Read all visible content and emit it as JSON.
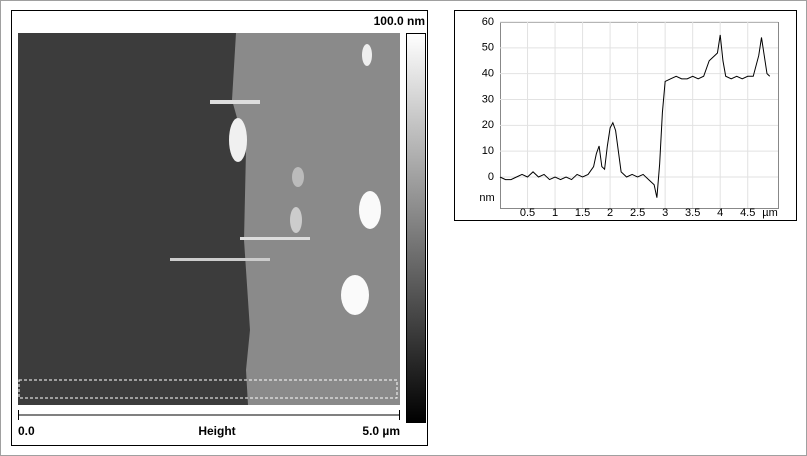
{
  "afm_image": {
    "scale_max": "100.0 nm",
    "x_min": "0.0",
    "channel": "Height",
    "x_max": "5.0 µm"
  },
  "chart_data": {
    "type": "line",
    "y_label": "nm",
    "x_label": "µm",
    "color": "#000000",
    "grid": true,
    "x": [
      0,
      0.1,
      0.2,
      0.3,
      0.4,
      0.5,
      0.6,
      0.7,
      0.8,
      0.9,
      1.0,
      1.1,
      1.2,
      1.3,
      1.4,
      1.5,
      1.6,
      1.7,
      1.75,
      1.8,
      1.85,
      1.9,
      1.95,
      2.0,
      2.05,
      2.1,
      2.15,
      2.2,
      2.3,
      2.4,
      2.5,
      2.6,
      2.7,
      2.8,
      2.85,
      2.9,
      2.95,
      3.0,
      3.1,
      3.2,
      3.3,
      3.4,
      3.5,
      3.6,
      3.7,
      3.8,
      3.9,
      3.95,
      4.0,
      4.05,
      4.1,
      4.2,
      4.3,
      4.4,
      4.5,
      4.6,
      4.7,
      4.75,
      4.8,
      4.85,
      4.9
    ],
    "values": [
      0,
      -1,
      -1,
      0,
      1,
      0,
      2,
      0,
      1,
      -1,
      0,
      -1,
      0,
      -1,
      1,
      0,
      1,
      4,
      9,
      12,
      4,
      3,
      12,
      19,
      21,
      18,
      10,
      2,
      0,
      1,
      0,
      1,
      -1,
      -3,
      -8,
      5,
      25,
      37,
      38,
      39,
      38,
      38,
      39,
      38,
      39,
      45,
      47,
      48,
      55,
      45,
      39,
      38,
      39,
      38,
      39,
      39,
      47,
      54,
      47,
      40,
      39
    ],
    "xlim": [
      0,
      5.05
    ],
    "xticks": [
      0.5,
      1,
      1.5,
      2,
      2.5,
      3,
      3.5,
      4,
      4.5
    ],
    "ylim": [
      -12,
      60
    ],
    "yticks": [
      0,
      10,
      20,
      30,
      40,
      50,
      60
    ]
  }
}
